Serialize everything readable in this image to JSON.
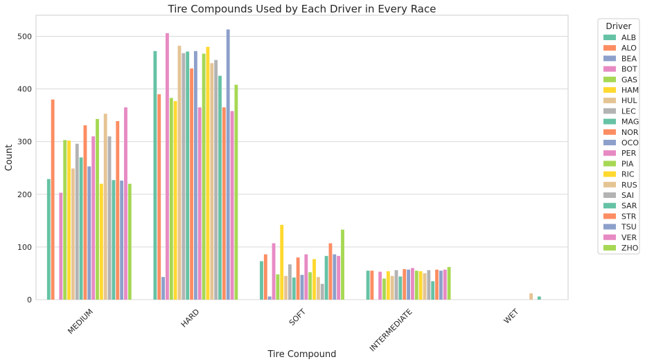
{
  "chart_data": {
    "type": "bar",
    "title": "Tire Compounds Used by Each Driver in Every Race",
    "xlabel": "Tire Compound",
    "ylabel": "Count",
    "ylim": [
      0,
      540
    ],
    "yticks": [
      "0",
      "100",
      "200",
      "300",
      "400",
      "500"
    ],
    "grid": true,
    "legend_title": "Driver",
    "legend_placement": "outside-right",
    "categories": [
      "MEDIUM",
      "HARD",
      "SOFT",
      "INTERMEDIATE",
      "WET"
    ],
    "palette": [
      "#66c2a5",
      "#fc8d62",
      "#8da0cb",
      "#e78ac3",
      "#a6d854",
      "#ffd92f",
      "#e5c494",
      "#b3b3b3"
    ],
    "series": [
      {
        "name": "ALB",
        "values": [
          229,
          472,
          73,
          55,
          0
        ]
      },
      {
        "name": "ALO",
        "values": [
          380,
          390,
          86,
          55,
          0
        ]
      },
      {
        "name": "BEA",
        "values": [
          0,
          43,
          6,
          0,
          0
        ]
      },
      {
        "name": "BOT",
        "values": [
          203,
          506,
          107,
          53,
          0
        ]
      },
      {
        "name": "GAS",
        "values": [
          303,
          383,
          48,
          40,
          0
        ]
      },
      {
        "name": "HAM",
        "values": [
          302,
          377,
          142,
          54,
          0
        ]
      },
      {
        "name": "HUL",
        "values": [
          249,
          482,
          45,
          45,
          0
        ]
      },
      {
        "name": "LEC",
        "values": [
          296,
          468,
          67,
          56,
          0
        ]
      },
      {
        "name": "MAG",
        "values": [
          270,
          471,
          42,
          44,
          0
        ]
      },
      {
        "name": "NOR",
        "values": [
          331,
          439,
          80,
          58,
          0
        ]
      },
      {
        "name": "OCO",
        "values": [
          253,
          472,
          47,
          57,
          0
        ]
      },
      {
        "name": "PER",
        "values": [
          310,
          365,
          86,
          60,
          0
        ]
      },
      {
        "name": "PIA",
        "values": [
          343,
          467,
          52,
          55,
          0
        ]
      },
      {
        "name": "RIC",
        "values": [
          220,
          480,
          77,
          54,
          0
        ]
      },
      {
        "name": "RUS",
        "values": [
          353,
          449,
          43,
          50,
          12
        ]
      },
      {
        "name": "SAI",
        "values": [
          310,
          455,
          30,
          56,
          0
        ]
      },
      {
        "name": "SAR",
        "values": [
          227,
          425,
          83,
          35,
          6
        ]
      },
      {
        "name": "STR",
        "values": [
          339,
          365,
          107,
          57,
          0
        ]
      },
      {
        "name": "TSU",
        "values": [
          226,
          513,
          86,
          55,
          0
        ]
      },
      {
        "name": "VER",
        "values": [
          365,
          358,
          83,
          57,
          0
        ]
      },
      {
        "name": "ZHO",
        "values": [
          220,
          408,
          133,
          62,
          0
        ]
      }
    ]
  }
}
